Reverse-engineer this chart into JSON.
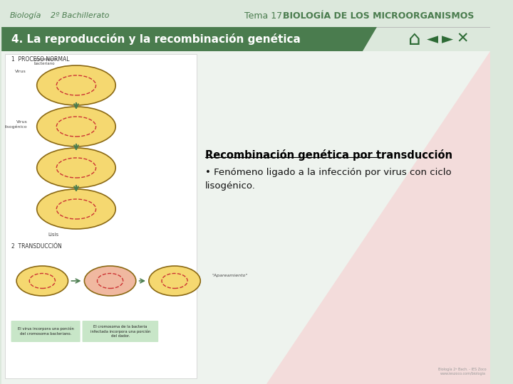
{
  "bg_color": "#dce8dc",
  "banner_bg": "#4a7c4e",
  "banner_text": "4. La reproducción y la recombinación genética",
  "banner_text_color": "#ffffff",
  "title_left1": "Biología",
  "title_left2": "2º Bachillerato",
  "title_right_normal": "Tema 17.  ",
  "title_right_bold": "BIOLOGÍA DE LOS MICROORGANISMOS",
  "title_text_color": "#4a7c4e",
  "content_heading": "Recombinación genética por transducción",
  "content_bullet": "• Fenómeno ligado a la infección por virus con ciclo\nlisogénico.",
  "pink_triangle_color": "#f5d5d5",
  "nav_color": "#2d6b35",
  "separator_color": "#aaaaaa"
}
